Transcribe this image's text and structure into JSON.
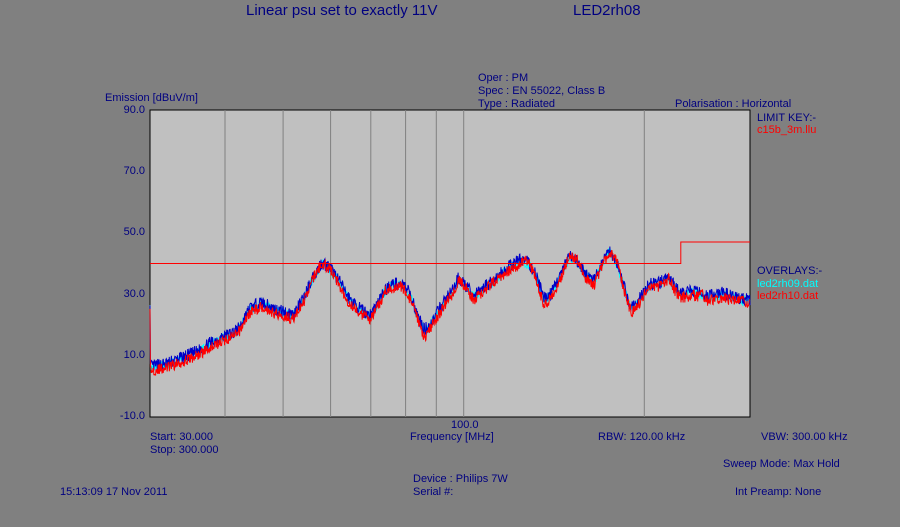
{
  "header": {
    "title": "Linear psu set to exactly 11V",
    "test_id": "LED2rh08"
  },
  "info": {
    "oper": "Oper : PM",
    "spec": "Spec : EN 55022, Class B",
    "type": "Type : Radiated",
    "polarisation": "Polarisation : Horizontal"
  },
  "legend": {
    "limit_key": "LIMIT KEY:-",
    "limit_file": "c15b_3m.llu",
    "overlays": "OVERLAYS:-",
    "overlay_1": "led2rh09.dat",
    "overlay_2": "led2rh10.dat"
  },
  "footer": {
    "start": "Start: 30.000",
    "stop": "Stop: 300.000",
    "rbw": "RBW: 120.00 kHz",
    "vbw": "VBW: 300.00 kHz",
    "sweep_mode": "Sweep Mode: Max Hold",
    "device": "Device : Philips 7W",
    "serial": "Serial #:",
    "timestamp": "15:13:09 17 Nov 2011",
    "int_preamp": "Int Preamp: None"
  },
  "colors": {
    "plot_bg": "#c0c0c0",
    "limit": "#ff0000",
    "trace_main": "#0000c8",
    "overlay_1": "#00ffff",
    "overlay_2": "#ff0000"
  },
  "chart_data": {
    "type": "line",
    "title": "Linear psu set to exactly 11V",
    "ylabel": "Emission [dBuV/m]",
    "xlabel": "Frequency [MHz]",
    "x_scale": "log",
    "xlim": [
      30,
      300
    ],
    "ylim": [
      -10,
      90
    ],
    "y_ticks": [
      "90.0",
      "70.0",
      "50.0",
      "30.0",
      "10.0",
      "-10.0"
    ],
    "x_tick_labels": [
      "100.0"
    ],
    "grid": true,
    "limit_line": {
      "name": "c15b_3m.llu",
      "x": [
        30,
        230,
        230,
        300
      ],
      "y": [
        40,
        40,
        47,
        47
      ]
    },
    "series": [
      {
        "name": "led2rh09.dat",
        "x": [
          30,
          32,
          34,
          36,
          38,
          40,
          42,
          44,
          46,
          48,
          50,
          52,
          54,
          56,
          58,
          60,
          62,
          64,
          66,
          68,
          70,
          72,
          74,
          76,
          78,
          80,
          82,
          84,
          86,
          88,
          90,
          92,
          94,
          96,
          98,
          100,
          104,
          108,
          112,
          116,
          120,
          124,
          128,
          132,
          136,
          140,
          145,
          150,
          155,
          160,
          165,
          170,
          175,
          180,
          185,
          190,
          195,
          200,
          205,
          210,
          215,
          220,
          225,
          230,
          235,
          240,
          245,
          250,
          255,
          260,
          270,
          280,
          290,
          300
        ],
        "y": [
          6,
          7,
          9,
          11,
          14,
          16,
          18,
          25,
          27,
          25,
          24,
          23,
          28,
          35,
          40,
          38,
          34,
          29,
          26,
          24,
          23,
          27,
          31,
          33,
          33,
          32,
          28,
          22,
          18,
          20,
          23,
          26,
          29,
          31,
          35,
          33,
          29,
          32,
          34,
          37,
          39,
          41,
          40,
          36,
          28,
          30,
          36,
          42,
          40,
          36,
          34,
          40,
          44,
          40,
          32,
          25,
          27,
          31,
          33,
          33,
          34,
          35,
          32,
          30,
          30,
          31,
          30,
          30,
          29,
          29,
          30,
          29,
          28,
          28
        ]
      },
      {
        "name": "led2rh10.dat",
        "x": [
          30,
          32,
          34,
          36,
          38,
          40,
          42,
          44,
          46,
          48,
          50,
          52,
          54,
          56,
          58,
          60,
          62,
          64,
          66,
          68,
          70,
          72,
          74,
          76,
          78,
          80,
          82,
          84,
          86,
          88,
          90,
          92,
          94,
          96,
          98,
          100,
          104,
          108,
          112,
          116,
          120,
          124,
          128,
          132,
          136,
          140,
          145,
          150,
          155,
          160,
          165,
          170,
          175,
          180,
          185,
          190,
          195,
          200,
          205,
          210,
          215,
          220,
          225,
          230,
          235,
          240,
          245,
          250,
          255,
          260,
          270,
          280,
          290,
          300
        ],
        "y": [
          5,
          6,
          8,
          10,
          13,
          15,
          17,
          24,
          26,
          24,
          23,
          22,
          27,
          35,
          40,
          38,
          33,
          28,
          25,
          23,
          22,
          26,
          31,
          32,
          33,
          31,
          27,
          21,
          16,
          19,
          22,
          25,
          28,
          30,
          35,
          33,
          28,
          31,
          34,
          36,
          38,
          40,
          41,
          35,
          26,
          29,
          35,
          43,
          41,
          35,
          33,
          39,
          44,
          41,
          31,
          24,
          26,
          30,
          33,
          32,
          34,
          35,
          31,
          29,
          29,
          30,
          29,
          30,
          28,
          28,
          29,
          28,
          28,
          27
        ]
      }
    ]
  }
}
